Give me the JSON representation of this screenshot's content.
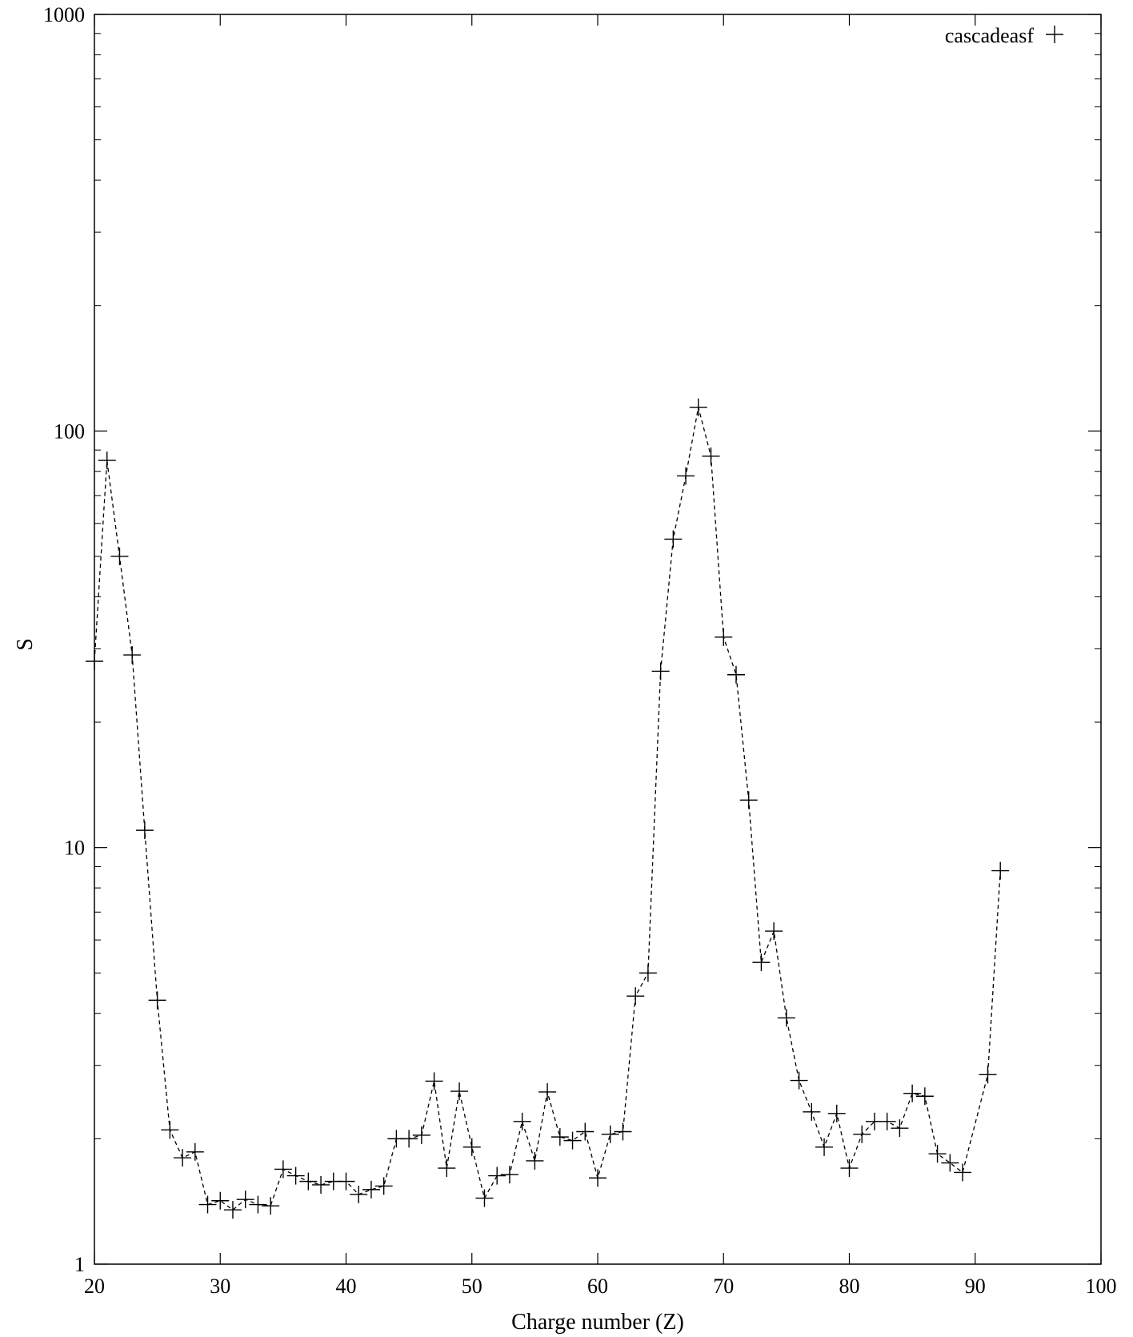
{
  "chart_data": {
    "type": "line",
    "title": "",
    "xlabel": "Charge number (Z)",
    "ylabel": "S",
    "xlim": [
      20,
      100
    ],
    "ylim": [
      1,
      1000
    ],
    "yscale": "log",
    "grid": false,
    "legend_position": "top-right",
    "x_ticks": [
      20,
      30,
      40,
      50,
      60,
      70,
      80,
      90,
      100
    ],
    "x_tick_labels": [
      "20",
      "30",
      "40",
      "50",
      "60",
      "70",
      "80",
      "90",
      "100"
    ],
    "y_ticks": [
      1,
      10,
      100,
      1000
    ],
    "y_tick_labels": [
      "1",
      "10",
      "100",
      "1000"
    ],
    "series": [
      {
        "name": "cascadeasf",
        "marker": "plus",
        "line_style": "dashed",
        "color": "#000000",
        "x": [
          20,
          21,
          22,
          23,
          24,
          25,
          26,
          27,
          28,
          29,
          30,
          31,
          32,
          33,
          34,
          35,
          36,
          37,
          38,
          39,
          40,
          41,
          42,
          43,
          44,
          45,
          46,
          47,
          48,
          49,
          50,
          51,
          52,
          53,
          54,
          55,
          56,
          57,
          58,
          59,
          60,
          61,
          62,
          63,
          64,
          65,
          66,
          67,
          68,
          69,
          70,
          71,
          72,
          73,
          74,
          75,
          76,
          77,
          78,
          79,
          80,
          81,
          82,
          83,
          84,
          85,
          86,
          87,
          88,
          89,
          91,
          92
        ],
        "y": [
          28,
          85,
          50,
          29,
          11,
          4.3,
          2.1,
          1.8,
          1.86,
          1.39,
          1.42,
          1.35,
          1.43,
          1.39,
          1.38,
          1.69,
          1.63,
          1.58,
          1.55,
          1.58,
          1.58,
          1.47,
          1.51,
          1.54,
          2.0,
          2.0,
          2.04,
          2.75,
          1.7,
          2.6,
          1.91,
          1.44,
          1.63,
          1.64,
          2.2,
          1.77,
          2.59,
          2.02,
          1.98,
          2.08,
          1.61,
          2.05,
          2.08,
          4.4,
          5.0,
          26.5,
          55,
          78,
          114,
          87,
          32,
          26,
          13,
          5.3,
          6.3,
          3.9,
          2.76,
          2.32,
          1.91,
          2.3,
          1.7,
          2.05,
          2.2,
          2.2,
          2.12,
          2.57,
          2.53,
          1.84,
          1.75,
          1.66,
          2.85,
          8.8
        ]
      }
    ]
  }
}
